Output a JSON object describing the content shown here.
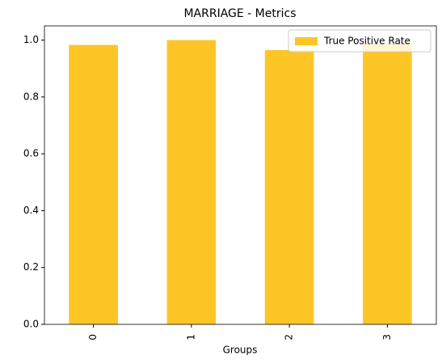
{
  "chart_data": {
    "type": "bar",
    "title": "MARRIAGE - Metrics",
    "x_label": "Groups",
    "categories": [
      "0",
      "1",
      "2",
      "3"
    ],
    "series": [
      {
        "name": "True Positive Rate",
        "color": "#fdc626",
        "values": [
          0.983,
          1.0,
          0.965,
          0.99
        ]
      }
    ],
    "ylim": [
      0,
      1.05
    ],
    "yticks": [
      {
        "value": 0,
        "label": "0.0"
      },
      0.2,
      0.4,
      0.6,
      0.8,
      {
        "value": 1,
        "label": "1.0"
      }
    ],
    "legend": "upper right"
  }
}
